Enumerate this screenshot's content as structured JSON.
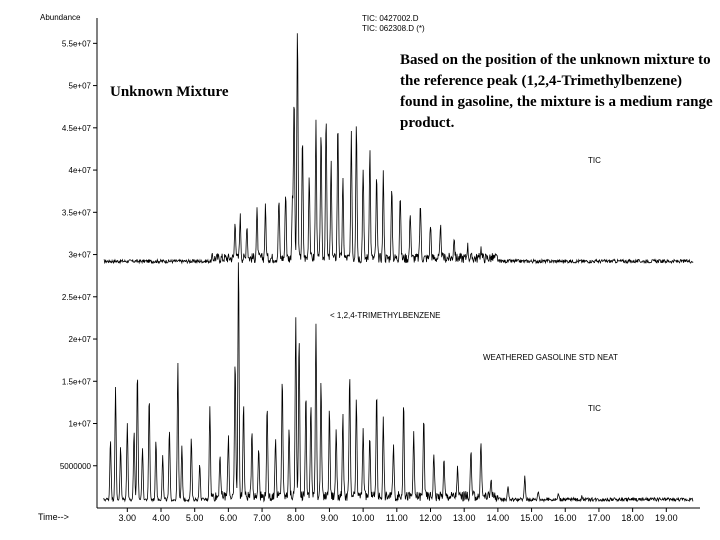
{
  "chart_data": {
    "type": "line",
    "ylabel": "Abundance",
    "xlabel": "Time-->",
    "x_ticks": [
      "3.00",
      "4.00",
      "5.00",
      "6.00",
      "7.00",
      "8.00",
      "9.00",
      "10.00",
      "11.00",
      "12.00",
      "13.00",
      "14.00",
      "15.00",
      "16.00",
      "17.00",
      "18.00",
      "19.00"
    ],
    "x_tick_values": [
      3,
      4,
      5,
      6,
      7,
      8,
      9,
      10,
      11,
      12,
      13,
      14,
      15,
      16,
      17,
      18,
      19
    ],
    "xlim": [
      2.1,
      20.0
    ],
    "y_ticks": [
      "5000000",
      "1e+07",
      "1.5e+07",
      "2e+07",
      "2.5e+07",
      "3e+07",
      "3.5e+07",
      "4e+07",
      "4.5e+07",
      "5e+07",
      "5.5e+07"
    ],
    "y_tick_values": [
      5000000,
      10000000,
      15000000,
      20000000,
      25000000,
      30000000,
      35000000,
      40000000,
      45000000,
      50000000,
      55000000
    ],
    "ylim": [
      0,
      58000000
    ],
    "header": [
      "TIC: 0427002.D",
      "TIC: 062308.D (*)"
    ],
    "trace_labels": {
      "upper": "TIC",
      "lower": "TIC"
    },
    "reference_label": "< 1,2,4-TRIMETHYLBENZENE",
    "standard_label": "WEATHERED GASOLINE STD  NEAT",
    "series": [
      {
        "name": "TIC: 0427002.D",
        "baseline": 29000000,
        "peaks": [
          {
            "x": 6.2,
            "y": 33500000
          },
          {
            "x": 6.35,
            "y": 34000000
          },
          {
            "x": 6.55,
            "y": 33000000
          },
          {
            "x": 6.85,
            "y": 34500000
          },
          {
            "x": 7.1,
            "y": 35000000
          },
          {
            "x": 7.5,
            "y": 36000000
          },
          {
            "x": 7.7,
            "y": 37000000
          },
          {
            "x": 7.9,
            "y": 35500000
          },
          {
            "x": 7.95,
            "y": 48000000
          },
          {
            "x": 8.05,
            "y": 56500000
          },
          {
            "x": 8.2,
            "y": 43000000
          },
          {
            "x": 8.4,
            "y": 39000000
          },
          {
            "x": 8.6,
            "y": 45000000
          },
          {
            "x": 8.75,
            "y": 44000000
          },
          {
            "x": 8.9,
            "y": 46000000
          },
          {
            "x": 9.05,
            "y": 40000000
          },
          {
            "x": 9.25,
            "y": 45000000
          },
          {
            "x": 9.4,
            "y": 38000000
          },
          {
            "x": 9.65,
            "y": 43500000
          },
          {
            "x": 9.8,
            "y": 45500000
          },
          {
            "x": 10.0,
            "y": 40000000
          },
          {
            "x": 10.2,
            "y": 42000000
          },
          {
            "x": 10.4,
            "y": 38500000
          },
          {
            "x": 10.6,
            "y": 39000000
          },
          {
            "x": 10.85,
            "y": 37000000
          },
          {
            "x": 11.1,
            "y": 36500000
          },
          {
            "x": 11.4,
            "y": 34500000
          },
          {
            "x": 11.7,
            "y": 35500000
          },
          {
            "x": 12.0,
            "y": 33000000
          },
          {
            "x": 12.3,
            "y": 32500000
          },
          {
            "x": 12.7,
            "y": 31500000
          },
          {
            "x": 13.1,
            "y": 30500000
          },
          {
            "x": 13.5,
            "y": 30200000
          }
        ]
      },
      {
        "name": "TIC: 062308.D (*)",
        "baseline": 800000,
        "peaks": [
          {
            "x": 2.5,
            "y": 8000000
          },
          {
            "x": 2.65,
            "y": 14000000
          },
          {
            "x": 2.8,
            "y": 7000000
          },
          {
            "x": 3.0,
            "y": 10000000
          },
          {
            "x": 3.2,
            "y": 9000000
          },
          {
            "x": 3.3,
            "y": 16000000
          },
          {
            "x": 3.45,
            "y": 7000000
          },
          {
            "x": 3.65,
            "y": 13000000
          },
          {
            "x": 3.85,
            "y": 8000000
          },
          {
            "x": 4.05,
            "y": 6000000
          },
          {
            "x": 4.25,
            "y": 9000000
          },
          {
            "x": 4.5,
            "y": 17000000
          },
          {
            "x": 4.62,
            "y": 7000000
          },
          {
            "x": 4.9,
            "y": 8000000
          },
          {
            "x": 5.15,
            "y": 5000000
          },
          {
            "x": 5.45,
            "y": 12000000
          },
          {
            "x": 5.75,
            "y": 6000000
          },
          {
            "x": 6.0,
            "y": 8000000
          },
          {
            "x": 6.2,
            "y": 17000000
          },
          {
            "x": 6.3,
            "y": 29000000
          },
          {
            "x": 6.45,
            "y": 12000000
          },
          {
            "x": 6.7,
            "y": 9000000
          },
          {
            "x": 6.9,
            "y": 7000000
          },
          {
            "x": 7.15,
            "y": 11000000
          },
          {
            "x": 7.4,
            "y": 8000000
          },
          {
            "x": 7.6,
            "y": 15000000
          },
          {
            "x": 7.8,
            "y": 9000000
          },
          {
            "x": 8.0,
            "y": 22000000
          },
          {
            "x": 8.1,
            "y": 20000000
          },
          {
            "x": 8.3,
            "y": 13000000
          },
          {
            "x": 8.45,
            "y": 12000000
          },
          {
            "x": 8.6,
            "y": 21500000
          },
          {
            "x": 8.75,
            "y": 14000000
          },
          {
            "x": 9.0,
            "y": 11000000
          },
          {
            "x": 9.2,
            "y": 9000000
          },
          {
            "x": 9.4,
            "y": 10000000
          },
          {
            "x": 9.6,
            "y": 15000000
          },
          {
            "x": 9.8,
            "y": 12000000
          },
          {
            "x": 10.0,
            "y": 9000000
          },
          {
            "x": 10.2,
            "y": 8000000
          },
          {
            "x": 10.4,
            "y": 13000000
          },
          {
            "x": 10.6,
            "y": 10000000
          },
          {
            "x": 10.9,
            "y": 7000000
          },
          {
            "x": 11.2,
            "y": 12000000
          },
          {
            "x": 11.5,
            "y": 8000000
          },
          {
            "x": 11.8,
            "y": 10500000
          },
          {
            "x": 12.1,
            "y": 6000000
          },
          {
            "x": 12.4,
            "y": 5000000
          },
          {
            "x": 12.8,
            "y": 4000000
          },
          {
            "x": 13.2,
            "y": 6000000
          },
          {
            "x": 13.5,
            "y": 7500000
          },
          {
            "x": 13.8,
            "y": 3000000
          },
          {
            "x": 14.3,
            "y": 2500000
          },
          {
            "x": 14.8,
            "y": 3500000
          },
          {
            "x": 15.2,
            "y": 1800000
          },
          {
            "x": 15.8,
            "y": 1500000
          },
          {
            "x": 16.5,
            "y": 1200000
          }
        ]
      }
    ]
  },
  "annotations": {
    "unknown_label": "Unknown Mixture",
    "note": "Based on the position of the unknown mixture to the reference peak (1,2,4-Trimethylbenzene) found in gasoline, the mixture is a medium range product."
  }
}
